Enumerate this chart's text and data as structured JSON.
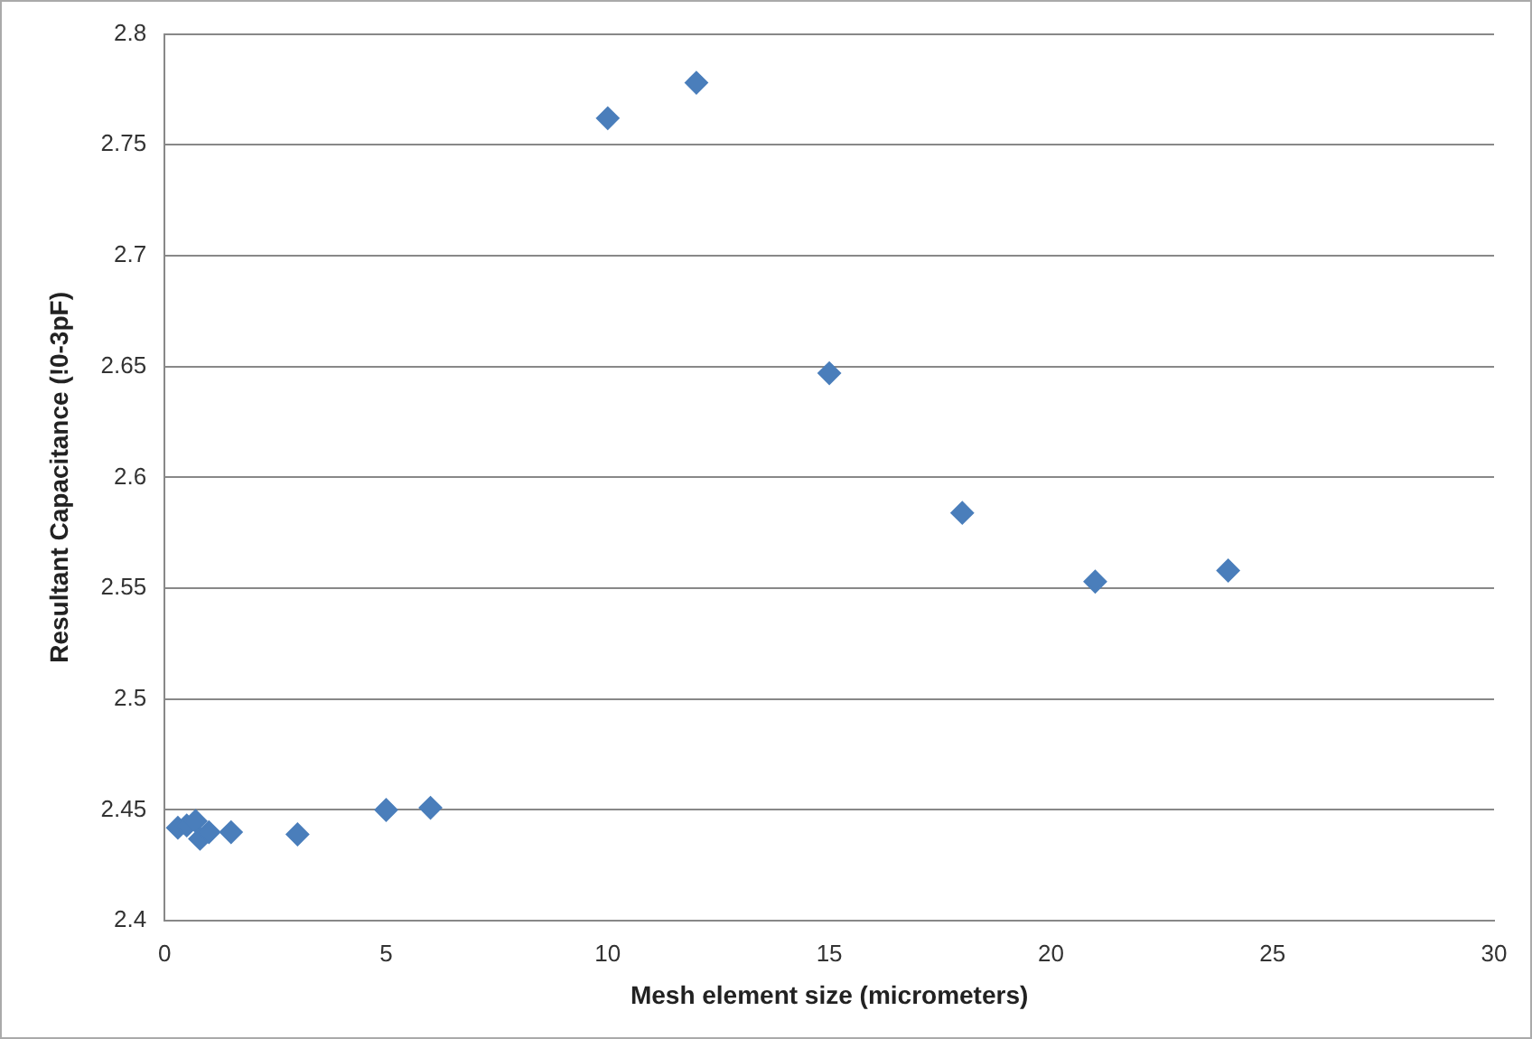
{
  "chart_data": {
    "type": "scatter",
    "xlabel": "Mesh element size (micrometers)",
    "ylabel": "Resultant Capacitance (!0-3pF)",
    "series": [
      {
        "color": "#4a7ebb",
        "x": [
          0.3,
          0.5,
          0.7,
          0.8,
          1,
          1.5,
          3,
          5,
          6,
          10,
          12,
          15,
          18,
          21,
          24
        ],
        "values": [
          2.442,
          2.443,
          2.445,
          2.437,
          2.44,
          2.44,
          2.439,
          2.45,
          2.451,
          2.762,
          2.778,
          2.647,
          2.584,
          2.553,
          2.558
        ]
      }
    ],
    "marker": "diamond",
    "xlim": [
      0,
      30
    ],
    "xticks": [
      0,
      5,
      10,
      15,
      20,
      25,
      30
    ],
    "ylim": [
      2.4,
      2.8
    ],
    "yticks": [
      2.4,
      2.45,
      2.5,
      2.55,
      2.6,
      2.65,
      2.7,
      2.75,
      2.8
    ],
    "grid": "y",
    "legend": false
  }
}
